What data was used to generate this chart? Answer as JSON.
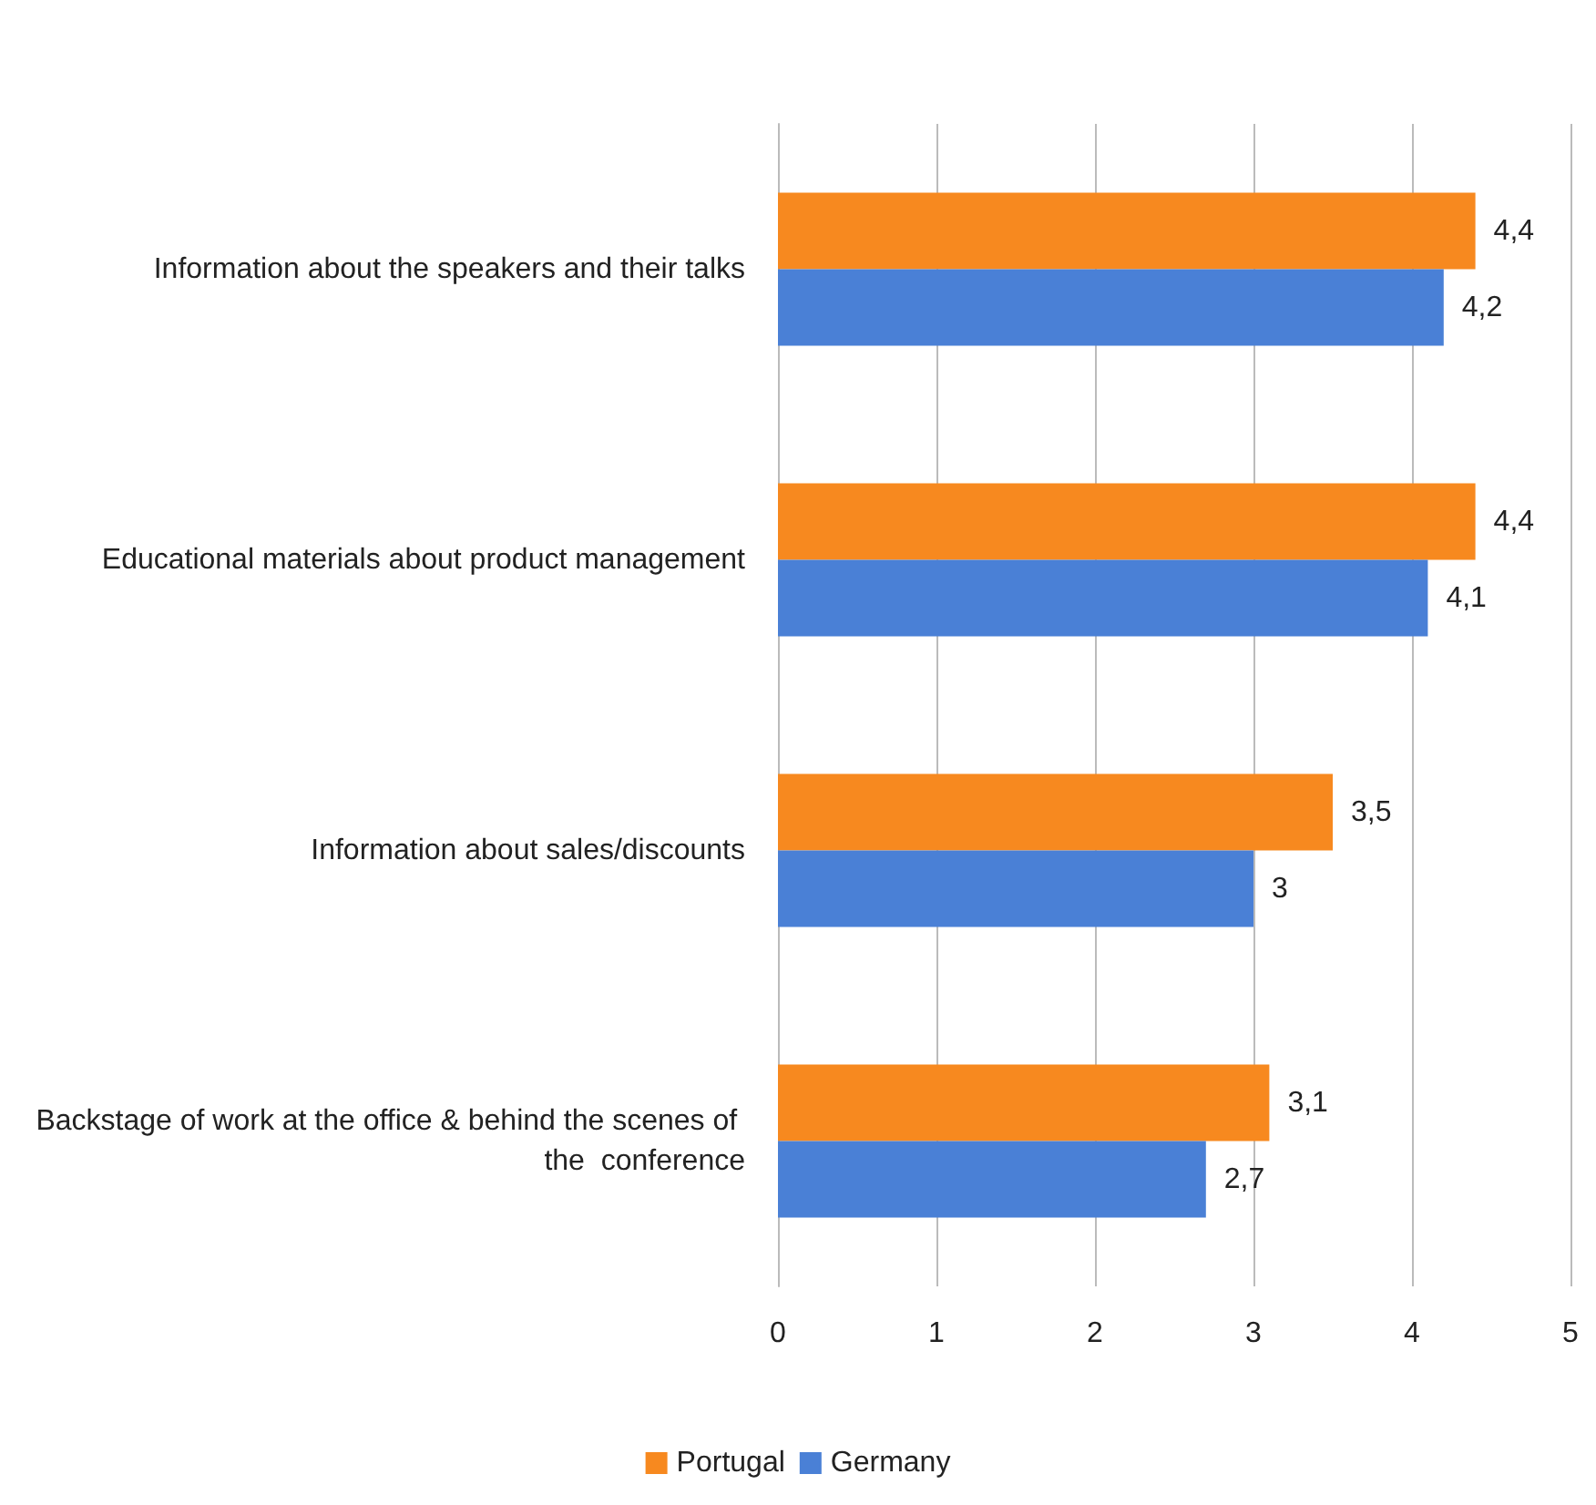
{
  "chart_data": {
    "type": "bar",
    "orientation": "horizontal",
    "categories": [
      "Information about the speakers and their talks",
      "Educational materials about product management",
      "Information about sales/discounts",
      "Backstage of work at the office & behind the scenes of the  conference"
    ],
    "series": [
      {
        "name": "Portugal",
        "color": "#f7891f",
        "values": [
          4.4,
          4.4,
          3.5,
          3.1
        ],
        "value_labels": [
          "4,4",
          "4,4",
          "3,5",
          "3,1"
        ]
      },
      {
        "name": "Germany",
        "color": "#4a80d6",
        "values": [
          4.2,
          4.1,
          3,
          2.7
        ],
        "value_labels": [
          "4,2",
          "4,1",
          "3",
          "2,7"
        ]
      }
    ],
    "xlim": [
      0,
      5
    ],
    "xticks": [
      0,
      1,
      2,
      3,
      4,
      5
    ],
    "grid": "x",
    "legend": "bottom"
  }
}
